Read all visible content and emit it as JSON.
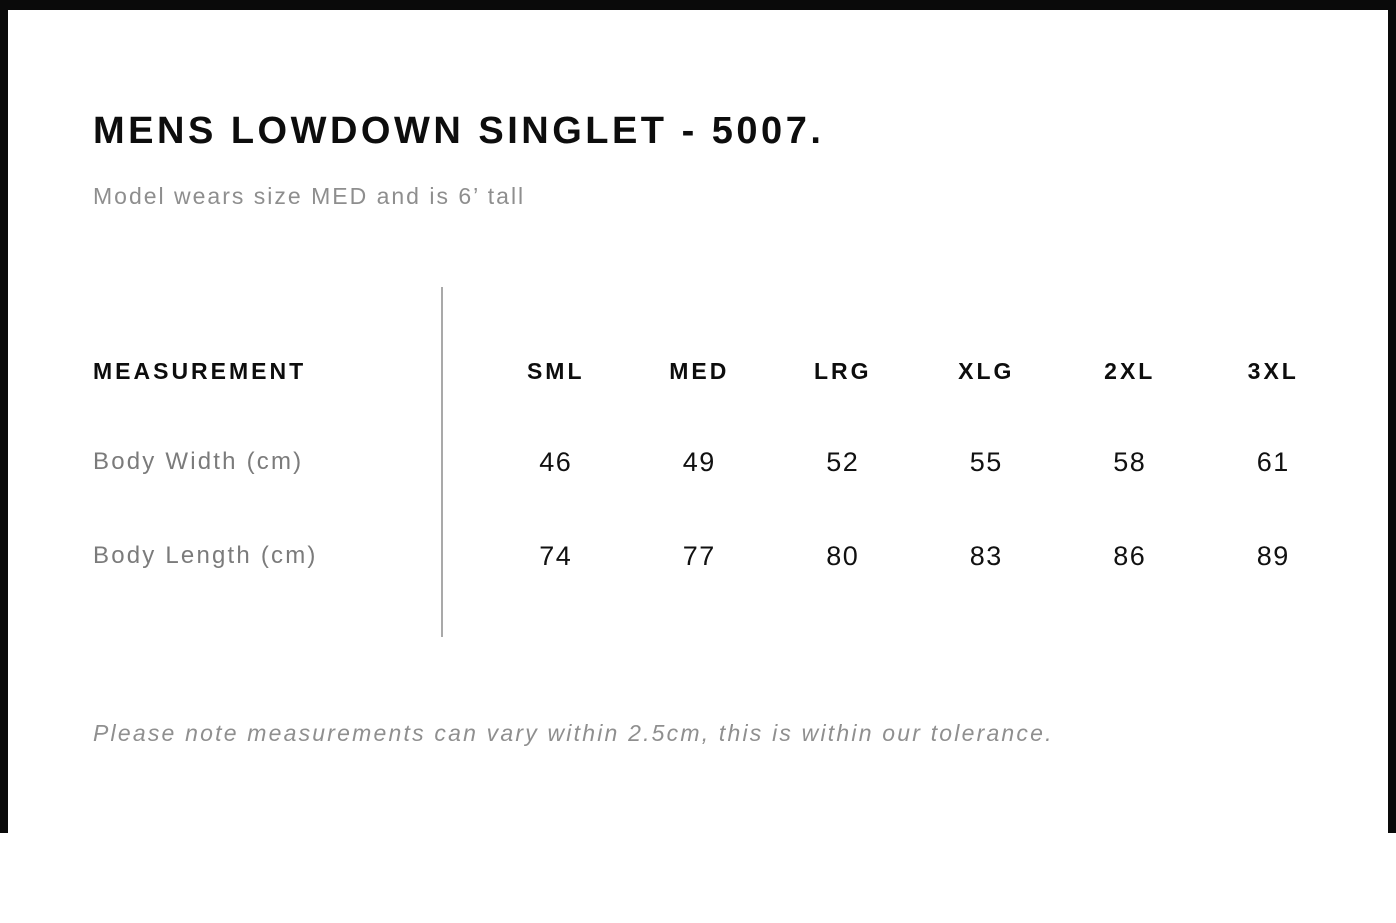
{
  "header": {
    "title": "MENS LOWDOWN SINGLET - 5007.",
    "subtitle": "Model wears size MED and is 6’ tall"
  },
  "table": {
    "measurement_header": "MEASUREMENT",
    "size_headers": [
      "SML",
      "MED",
      "LRG",
      "XLG",
      "2XL",
      "3XL"
    ],
    "rows": [
      {
        "label": "Body Width (cm)",
        "values": [
          "46",
          "49",
          "52",
          "55",
          "58",
          "61"
        ]
      },
      {
        "label": "Body Length (cm)",
        "values": [
          "74",
          "77",
          "80",
          "83",
          "86",
          "89"
        ]
      }
    ]
  },
  "footnote": {
    "text": "Please note measurements can vary within 2.5cm, this is within our tolerance."
  },
  "colors": {
    "text_primary": "#0d0d0d",
    "text_muted_label": "#7b7b7b",
    "text_muted_note": "#8f8f8f",
    "divider": "#a9a9a9",
    "frame": "#0a0a0a",
    "background": "#ffffff"
  }
}
